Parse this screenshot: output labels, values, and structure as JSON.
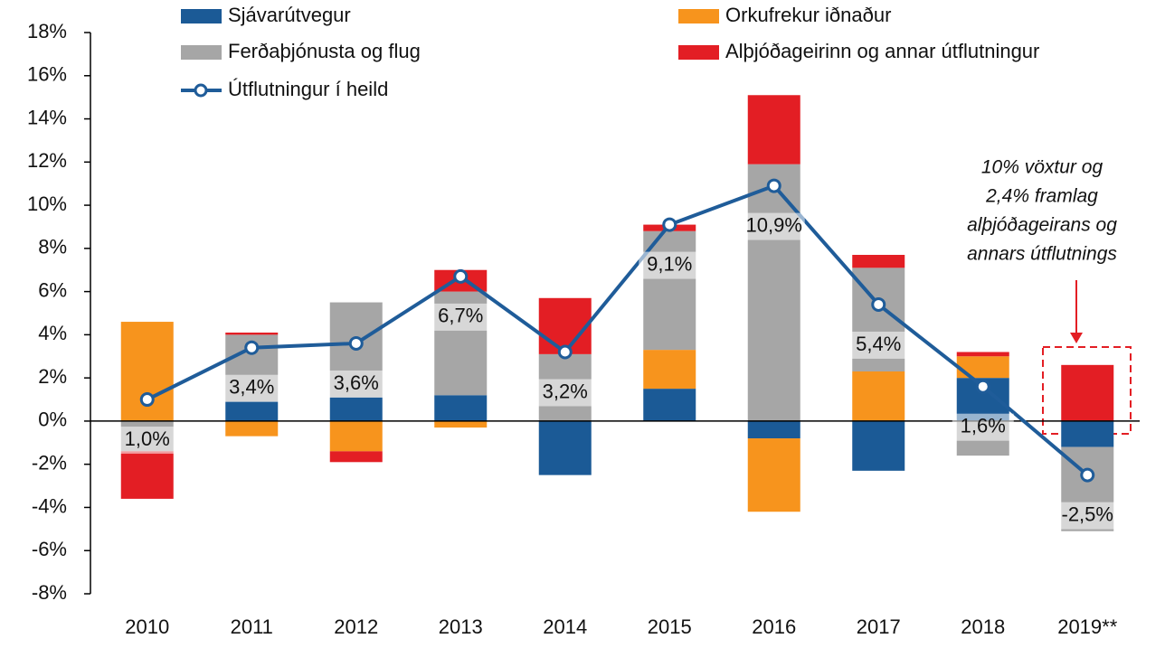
{
  "chart_data": {
    "type": "bar",
    "stacked": true,
    "categories": [
      "2010",
      "2011",
      "2012",
      "2013",
      "2014",
      "2015",
      "2016",
      "2017",
      "2018",
      "2019**"
    ],
    "series": [
      {
        "name": "Sjávarútvegur",
        "color": "#1b5a96",
        "values": [
          0,
          0.9,
          1.1,
          1.2,
          -2.5,
          1.5,
          -0.8,
          -2.3,
          2.0,
          -1.2
        ]
      },
      {
        "name": "Orkufrekur iðnaður",
        "color": "#f7941d",
        "values": [
          4.6,
          -0.7,
          -1.4,
          -0.3,
          0,
          1.8,
          -3.4,
          2.3,
          1.0,
          0
        ]
      },
      {
        "name": "Ferðaþjónusta og flug",
        "color": "#a6a6a6",
        "values": [
          -1.4,
          3.1,
          4.4,
          4.8,
          3.1,
          5.5,
          11.9,
          4.8,
          -1.6,
          -3.9
        ]
      },
      {
        "name": "Alþjóðageirinn og annar útflutningur",
        "color": "#e31e24",
        "values": [
          -2.2,
          0.1,
          -0.5,
          1.0,
          2.6,
          0.3,
          3.2,
          0.6,
          0.2,
          2.6
        ]
      },
      {
        "name": "Útflutningur í heild",
        "type": "line",
        "color": "#1f5c99",
        "values": [
          1.0,
          3.4,
          3.6,
          6.7,
          3.2,
          9.1,
          10.9,
          5.4,
          1.6,
          -2.5
        ],
        "value_labels": [
          "1,0%",
          "3,4%",
          "3,6%",
          "6,7%",
          "3,2%",
          "9,1%",
          "10,9%",
          "5,4%",
          "1,6%",
          "-2,5%"
        ]
      }
    ],
    "ylim": [
      -8,
      18
    ],
    "yticks": [
      {
        "value": -8,
        "label": "-8%"
      },
      {
        "value": -6,
        "label": "-6%"
      },
      {
        "value": -4,
        "label": "-4%"
      },
      {
        "value": -2,
        "label": "-2%"
      },
      {
        "value": 0,
        "label": "0%"
      },
      {
        "value": 2,
        "label": "2%"
      },
      {
        "value": 4,
        "label": "4%"
      },
      {
        "value": 6,
        "label": "6%"
      },
      {
        "value": 8,
        "label": "8%"
      },
      {
        "value": 10,
        "label": "10%"
      },
      {
        "value": 12,
        "label": "12%"
      },
      {
        "value": 14,
        "label": "14%"
      },
      {
        "value": 16,
        "label": "16%"
      },
      {
        "value": 18,
        "label": "18%"
      }
    ],
    "annotation": [
      "10% vöxtur og",
      "2,4% framlag",
      "alþjóðageirans og",
      "annars útflutnings"
    ]
  }
}
